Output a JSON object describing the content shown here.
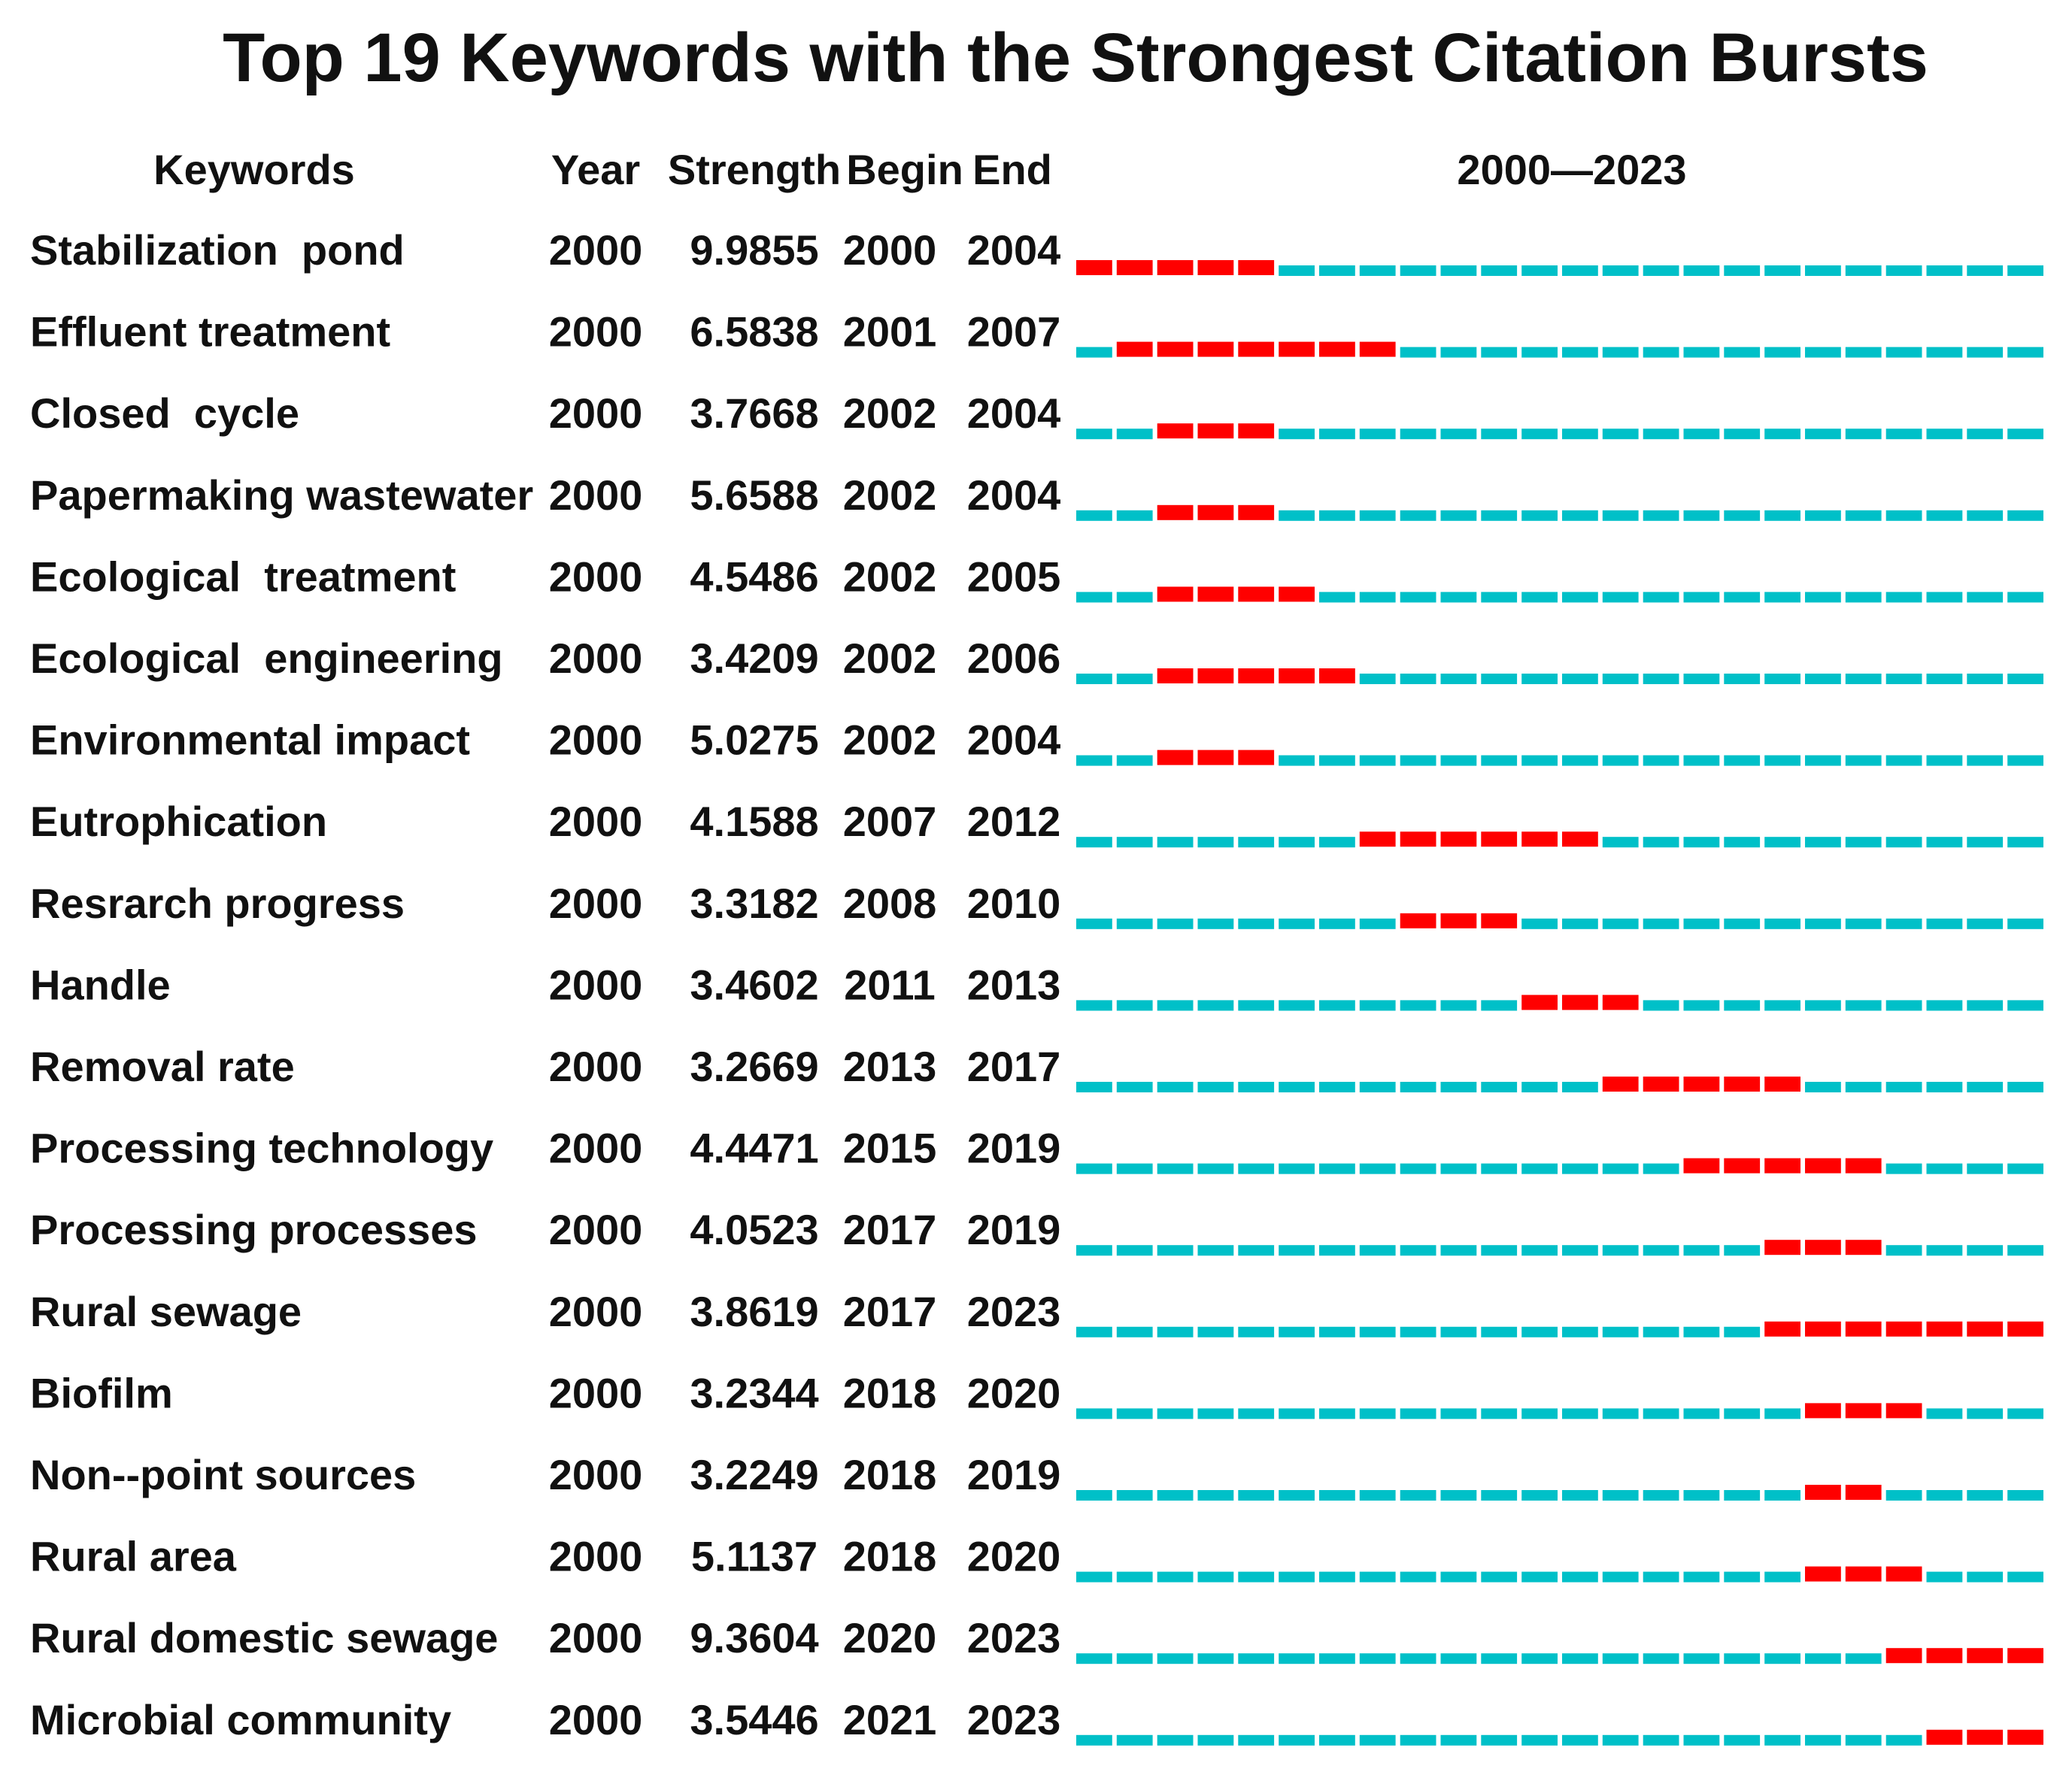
{
  "chart_data": {
    "type": "table",
    "title": "Top 19 Keywords with the Strongest Citation Bursts",
    "columns": [
      "Keywords",
      "Year",
      "Strength",
      "Begin",
      "End",
      "2000—2023"
    ],
    "range": [
      2000,
      2023
    ],
    "colors": {
      "burst": "#ff0000",
      "baseline": "#00c0c8"
    },
    "rows": [
      {
        "keyword": "Stabilization  pond",
        "year": "2000",
        "strength": "9.9855",
        "begin": "2000",
        "end": "2004"
      },
      {
        "keyword": "Effluent treatment",
        "year": "2000",
        "strength": "6.5838",
        "begin": "2001",
        "end": "2007"
      },
      {
        "keyword": "Closed  cycle",
        "year": "2000",
        "strength": "3.7668",
        "begin": "2002",
        "end": "2004"
      },
      {
        "keyword": "Papermaking wastewater",
        "year": "2000",
        "strength": "5.6588",
        "begin": "2002",
        "end": "2004"
      },
      {
        "keyword": "Ecological  treatment",
        "year": "2000",
        "strength": "4.5486",
        "begin": "2002",
        "end": "2005"
      },
      {
        "keyword": "Ecological  engineering",
        "year": "2000",
        "strength": "3.4209",
        "begin": "2002",
        "end": "2006"
      },
      {
        "keyword": "Environmental impact",
        "year": "2000",
        "strength": "5.0275",
        "begin": "2002",
        "end": "2004"
      },
      {
        "keyword": "Eutrophication",
        "year": "2000",
        "strength": "4.1588",
        "begin": "2007",
        "end": "2012"
      },
      {
        "keyword": "Resrarch progress",
        "year": "2000",
        "strength": "3.3182",
        "begin": "2008",
        "end": "2010"
      },
      {
        "keyword": "Handle",
        "year": "2000",
        "strength": "3.4602",
        "begin": "2011",
        "end": "2013"
      },
      {
        "keyword": "Removal rate",
        "year": "2000",
        "strength": "3.2669",
        "begin": "2013",
        "end": "2017"
      },
      {
        "keyword": "Processing technology",
        "year": "2000",
        "strength": "4.4471",
        "begin": "2015",
        "end": "2019"
      },
      {
        "keyword": "Processing processes",
        "year": "2000",
        "strength": "4.0523",
        "begin": "2017",
        "end": "2019"
      },
      {
        "keyword": "Rural sewage",
        "year": "2000",
        "strength": "3.8619",
        "begin": "2017",
        "end": "2023"
      },
      {
        "keyword": "Biofilm",
        "year": "2000",
        "strength": "3.2344",
        "begin": "2018",
        "end": "2020"
      },
      {
        "keyword": "Non--point sources",
        "year": "2000",
        "strength": "3.2249",
        "begin": "2018",
        "end": "2019"
      },
      {
        "keyword": "Rural area",
        "year": "2000",
        "strength": "5.1137",
        "begin": "2018",
        "end": "2020"
      },
      {
        "keyword": "Rural domestic sewage",
        "year": "2000",
        "strength": "9.3604",
        "begin": "2020",
        "end": "2023"
      },
      {
        "keyword": "Microbial community",
        "year": "2000",
        "strength": "3.5446",
        "begin": "2021",
        "end": "2023"
      }
    ]
  }
}
